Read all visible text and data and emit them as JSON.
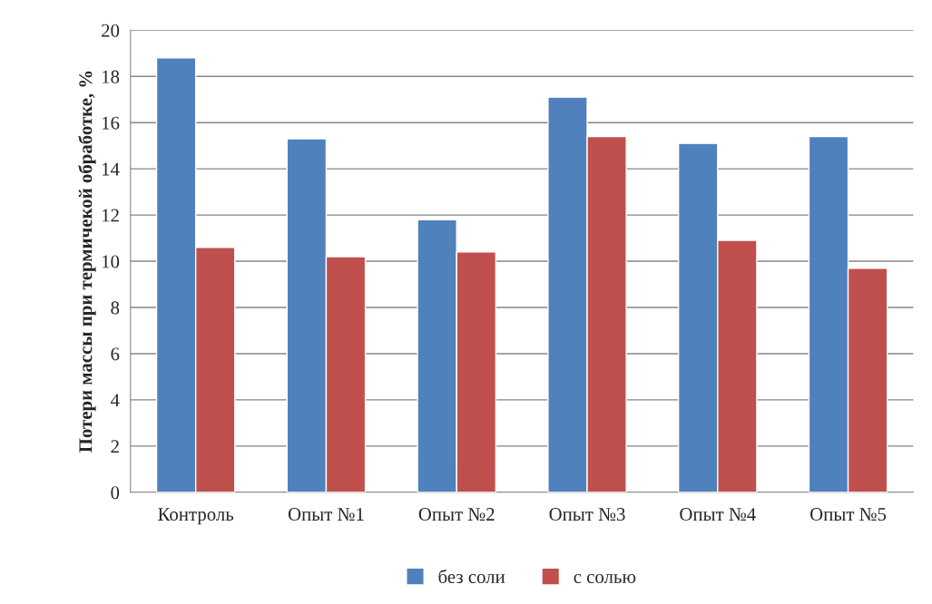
{
  "chart_data": {
    "type": "bar",
    "ylabel": "Потери массы при термичекой обработке, %",
    "categories": [
      "Контроль",
      "Опыт №1",
      "Опыт №2",
      "Опыт №3",
      "Опыт №4",
      "Опыт №5"
    ],
    "series": [
      {
        "name": "без соли",
        "color": "#4f81bd",
        "values": [
          18.8,
          15.3,
          11.8,
          17.1,
          15.1,
          15.4
        ]
      },
      {
        "name": "с солью",
        "color": "#c0504d",
        "values": [
          10.6,
          10.2,
          10.4,
          15.4,
          10.9,
          9.7
        ]
      }
    ],
    "ylim": [
      0,
      20
    ],
    "yticks": [
      0,
      2,
      4,
      6,
      8,
      10,
      12,
      14,
      16,
      18,
      20
    ],
    "grid": "y",
    "legend": "bottom"
  }
}
